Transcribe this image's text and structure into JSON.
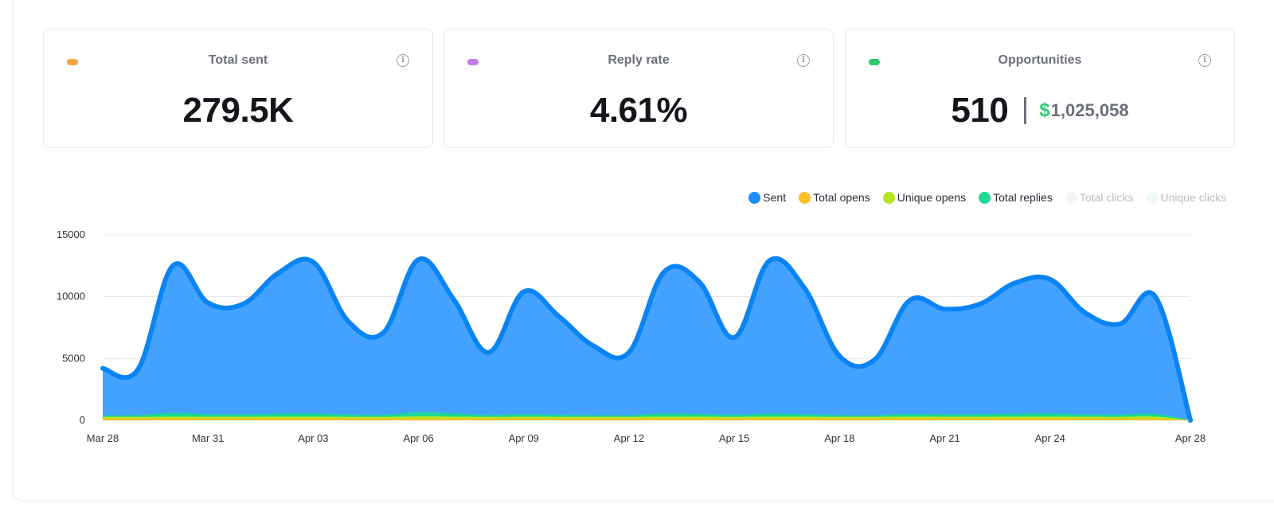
{
  "cards": [
    {
      "title": "Total sent",
      "value": "279.5K",
      "pill_color": "#f2a541",
      "info_icon": "info-icon"
    },
    {
      "title": "Reply rate",
      "value": "4.61%",
      "pill_color": "#c27bec",
      "info_icon": "info-icon"
    },
    {
      "title": "Opportunities",
      "value": "510",
      "currency": "$",
      "amount": "1,025,058",
      "pill_color": "#2ecc71",
      "info_icon": "info-icon"
    }
  ],
  "legend": [
    {
      "label": "Sent",
      "color": "#1a8cff",
      "active": true
    },
    {
      "label": "Total opens",
      "color": "#fbbf24",
      "active": true
    },
    {
      "label": "Unique opens",
      "color": "#b5e61d",
      "active": true
    },
    {
      "label": "Total replies",
      "color": "#1ed793",
      "active": true
    },
    {
      "label": "Total clicks",
      "color": "#f3f4f8",
      "active": false
    },
    {
      "label": "Unique clicks",
      "color": "#eef8f5",
      "active": false
    }
  ],
  "chart_data": {
    "type": "area",
    "x": [
      "Mar 28",
      "Mar 29",
      "Mar 30",
      "Mar 31",
      "Apr 01",
      "Apr 02",
      "Apr 03",
      "Apr 04",
      "Apr 05",
      "Apr 06",
      "Apr 07",
      "Apr 08",
      "Apr 09",
      "Apr 10",
      "Apr 11",
      "Apr 12",
      "Apr 13",
      "Apr 14",
      "Apr 15",
      "Apr 16",
      "Apr 17",
      "Apr 18",
      "Apr 19",
      "Apr 20",
      "Apr 21",
      "Apr 22",
      "Apr 23",
      "Apr 24",
      "Apr 25",
      "Apr 26",
      "Apr 27",
      "Apr 28"
    ],
    "x_tick_labels": [
      "Mar 28",
      "Mar 31",
      "Apr 03",
      "Apr 06",
      "Apr 09",
      "Apr 12",
      "Apr 15",
      "Apr 18",
      "Apr 21",
      "Apr 24",
      "Apr 28"
    ],
    "y_ticks": [
      0,
      5000,
      10000,
      15000
    ],
    "ylim": [
      0,
      15000
    ],
    "grid": true,
    "legend_position": "top-right",
    "series": [
      {
        "name": "Sent",
        "color": "#1a8cff",
        "values": [
          4200,
          4100,
          12500,
          9500,
          9400,
          11900,
          12800,
          8000,
          7100,
          13000,
          9800,
          5500,
          10400,
          8400,
          6000,
          5500,
          12000,
          11200,
          6700,
          12900,
          10700,
          5200,
          4900,
          9700,
          9000,
          9400,
          11100,
          11400,
          8700,
          7800,
          10000,
          0
        ]
      },
      {
        "name": "Total replies",
        "color": "#1ed793",
        "values": [
          400,
          420,
          600,
          500,
          480,
          550,
          560,
          470,
          440,
          640,
          560,
          430,
          500,
          450,
          420,
          410,
          560,
          520,
          450,
          550,
          500,
          420,
          410,
          520,
          490,
          500,
          540,
          560,
          480,
          460,
          520,
          0
        ]
      },
      {
        "name": "Unique opens",
        "color": "#b5e61d",
        "values": [
          280,
          280,
          300,
          290,
          290,
          300,
          300,
          285,
          280,
          310,
          300,
          280,
          290,
          285,
          280,
          280,
          300,
          295,
          285,
          300,
          295,
          280,
          280,
          295,
          290,
          290,
          300,
          300,
          290,
          285,
          295,
          0
        ]
      },
      {
        "name": "Total opens",
        "color": "#fbbf24",
        "values": [
          120,
          120,
          130,
          125,
          125,
          130,
          130,
          120,
          120,
          135,
          130,
          120,
          125,
          120,
          120,
          120,
          130,
          125,
          120,
          130,
          125,
          120,
          120,
          125,
          125,
          125,
          130,
          130,
          125,
          120,
          125,
          0
        ]
      }
    ]
  }
}
